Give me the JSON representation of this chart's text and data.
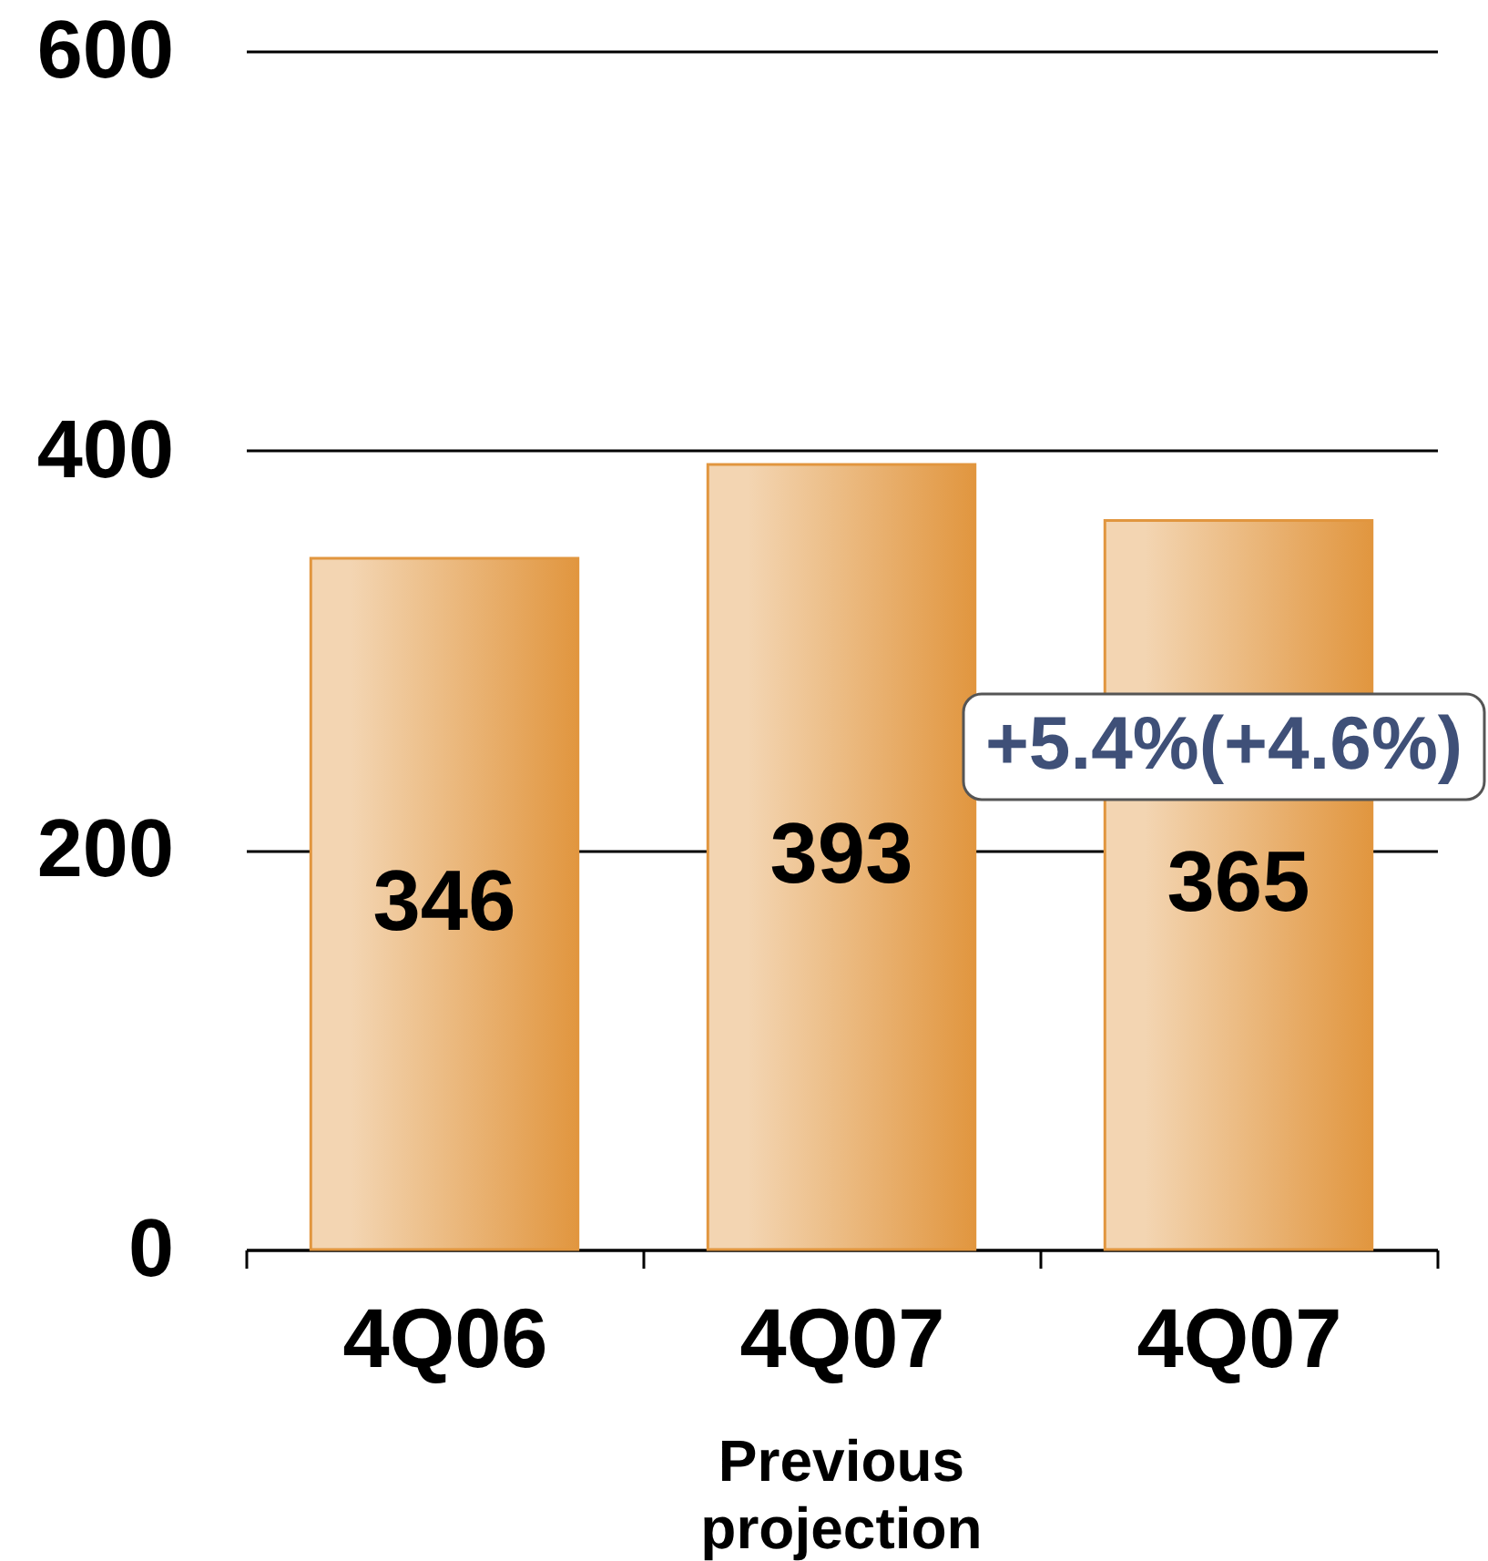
{
  "chart_data": {
    "type": "bar",
    "categories": [
      "4Q06",
      "4Q07",
      "4Q07"
    ],
    "values": [
      346,
      393,
      365
    ],
    "color": "#e1963f",
    "ylim": [
      0,
      600
    ],
    "yticks": [
      0,
      200,
      400,
      600
    ],
    "grid": "y",
    "data_labels": true,
    "annotations": [
      "+5.4%(+4.6%)",
      "Previous projection"
    ]
  }
}
